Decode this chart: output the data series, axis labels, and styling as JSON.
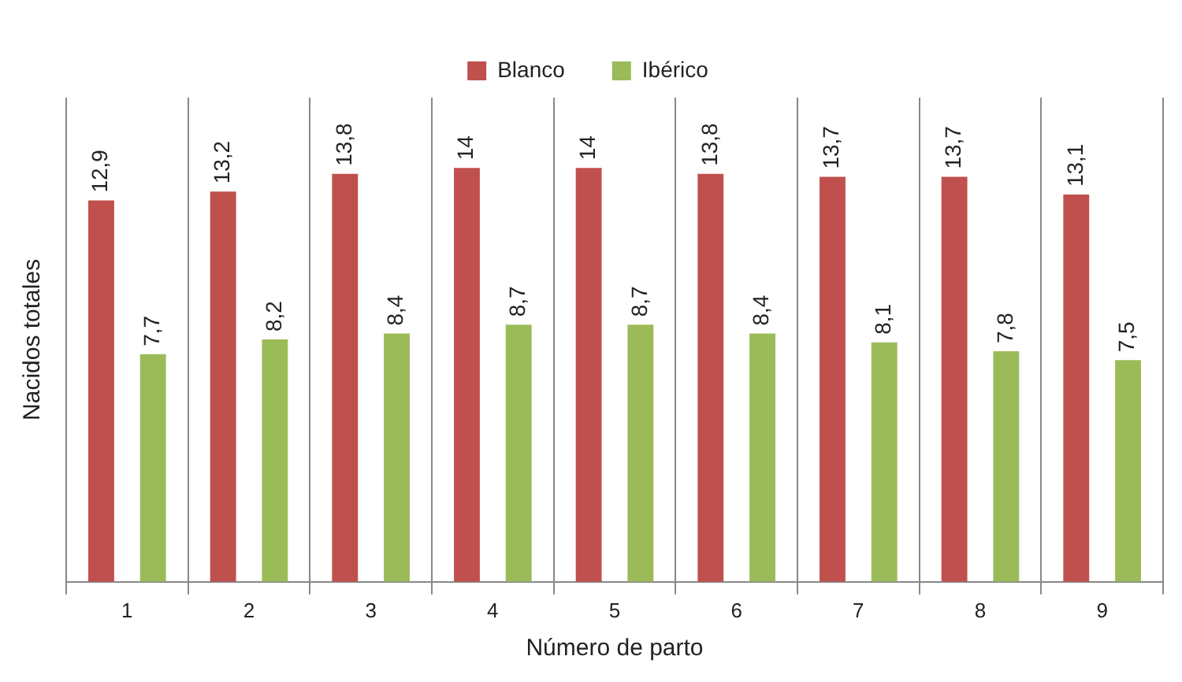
{
  "chart_data": {
    "type": "bar",
    "xlabel": "Número de parto",
    "ylabel": "Nacidos totales",
    "categories": [
      "1",
      "2",
      "3",
      "4",
      "5",
      "6",
      "7",
      "8",
      "9"
    ],
    "grid": "x",
    "legend": "top",
    "series": [
      {
        "name": "Blanco",
        "color": "#c0504d",
        "values": [
          12.9,
          13.2,
          13.8,
          14,
          14,
          13.8,
          13.7,
          13.7,
          13.1
        ],
        "value_labels": [
          "12,9",
          "13,2",
          "13,8",
          "14",
          "14",
          "13,8",
          "13,7",
          "13,7",
          "13,1"
        ]
      },
      {
        "name": "Ibérico",
        "color": "#9bbb59",
        "values": [
          7.7,
          8.2,
          8.4,
          8.7,
          8.7,
          8.4,
          8.1,
          7.8,
          7.5
        ],
        "value_labels": [
          "7,7",
          "8,2",
          "8,4",
          "8,7",
          "8,7",
          "8,4",
          "8,1",
          "7,8",
          "7,5"
        ]
      }
    ]
  }
}
